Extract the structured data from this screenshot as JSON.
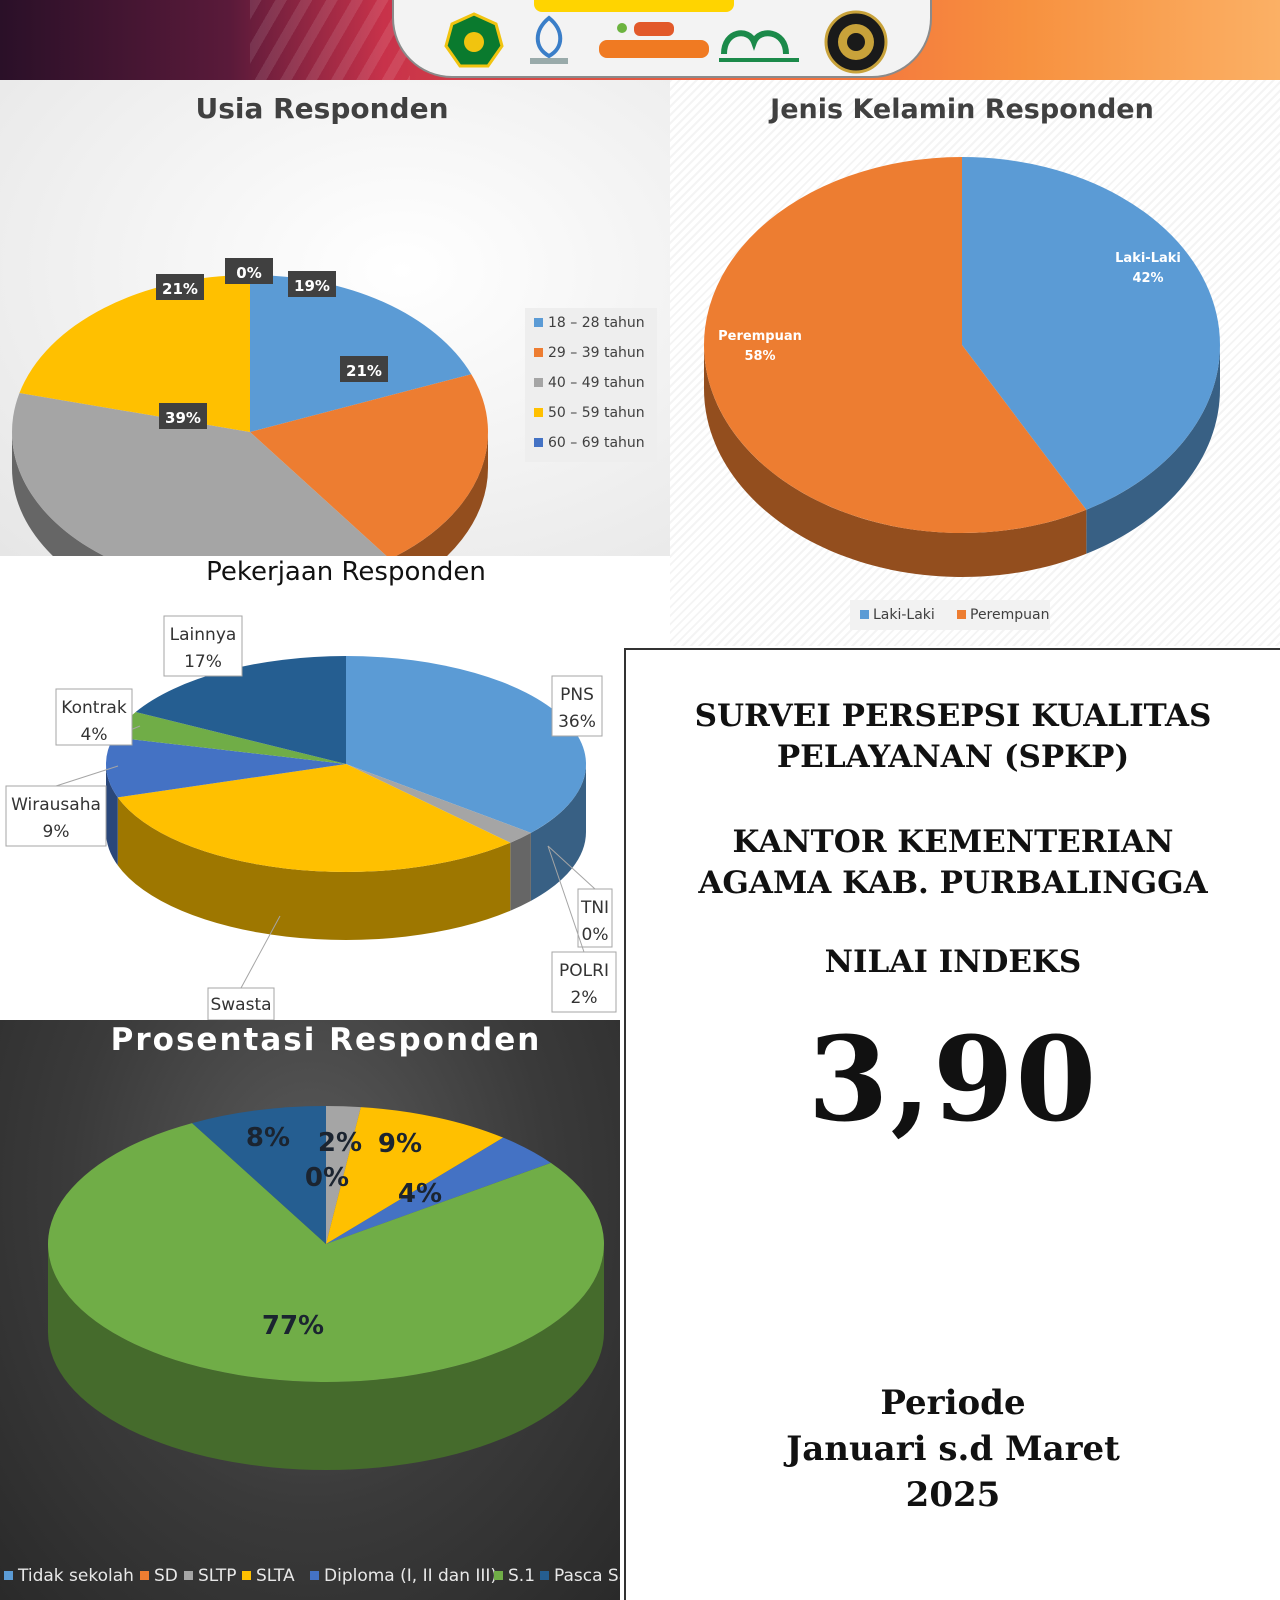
{
  "charts": [
    {
      "title": "Usia Responden",
      "type": "pie",
      "categories": [
        "18 – 28 tahun",
        "29 – 39 tahun",
        "40 – 49 tahun",
        "50 – 59 tahun",
        "60 – 69 tahun"
      ],
      "values": [
        19,
        21,
        39,
        21,
        0
      ],
      "value_labels": [
        "19%",
        "21%",
        "39%",
        "21%",
        "0%"
      ],
      "colors": [
        "#5b9bd5",
        "#ed7d31",
        "#a5a5a5",
        "#ffc000",
        "#4472c4"
      ],
      "legend": "right",
      "style": "3d"
    },
    {
      "title": "Jenis Kelamin Responden",
      "type": "pie",
      "categories": [
        "Laki-Laki",
        "Perempuan"
      ],
      "values": [
        42,
        58
      ],
      "value_labels": [
        "42%",
        "58%"
      ],
      "colors": [
        "#5b9bd5",
        "#ed7d31"
      ],
      "legend": "bottom",
      "style": "3d"
    },
    {
      "title": "Pekerjaan Responden",
      "type": "pie",
      "categories": [
        "PNS",
        "TNI",
        "POLRI",
        "Swasta",
        "Wirausaha",
        "Kontrak",
        "Lainnya"
      ],
      "values": [
        36,
        0,
        2,
        32,
        9,
        4,
        17
      ],
      "value_labels": [
        "36%",
        "0%",
        "2%",
        "",
        "9%",
        "4%",
        "17%"
      ],
      "colors": [
        "#5b9bd5",
        "#ed7d31",
        "#a5a5a5",
        "#ffc000",
        "#4472c4",
        "#70ad47",
        "#255e91"
      ],
      "legend": "none",
      "style": "3d"
    },
    {
      "title": "Prosentasi Responden",
      "type": "pie",
      "categories": [
        "Tidak sekolah",
        "SD",
        "SLTP",
        "SLTA",
        "Diploma (I, II dan III)",
        "S.1",
        "Pasca Sa"
      ],
      "values": [
        0,
        0,
        2,
        9,
        4,
        77,
        8
      ],
      "value_labels": [
        "",
        "0%",
        "2%",
        "9%",
        "4%",
        "77%",
        "8%"
      ],
      "colors": [
        "#5b9bd5",
        "#ed7d31",
        "#a5a5a5",
        "#ffc000",
        "#4472c4",
        "#70ad47",
        "#255e91"
      ],
      "legend": "bottom",
      "style": "3d"
    }
  ],
  "info": {
    "title_line1": "SURVEI PERSEPSI KUALITAS",
    "title_line2": "PELAYANAN (SPKP)",
    "office_line1": "KANTOR KEMENTERIAN",
    "office_line2": "AGAMA KAB. PURBALINGGA",
    "index_label": "NILAI INDEKS",
    "index_value": "3,90",
    "period_label": "Periode",
    "period_range": "Januari s.d Maret",
    "period_year": "2025"
  },
  "banner": {
    "logos": [
      "kemenag-emblem-icon",
      "pusaka-logo-icon",
      "mendoan-logo-icon",
      "sehati-logo-icon",
      "seal-emblem-icon"
    ]
  }
}
